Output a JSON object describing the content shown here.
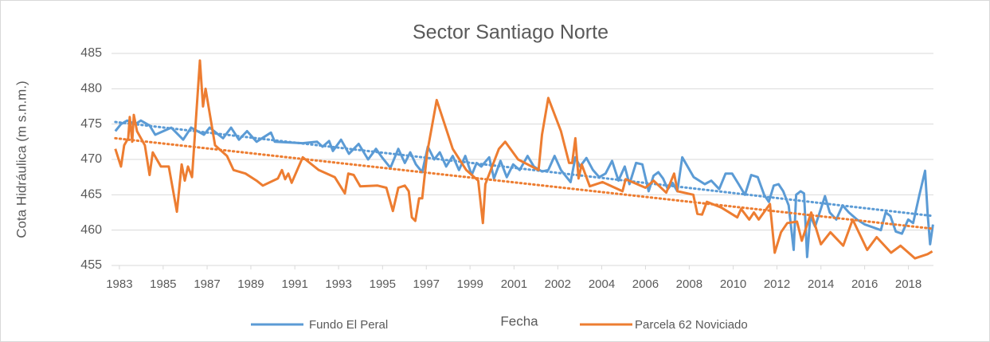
{
  "chart_data": {
    "type": "line",
    "title": "Sector Santiago Norte",
    "x_label": "Fecha",
    "y_label": "Cota Hidráulica  (m s.n.m.)",
    "xlim": [
      1982.65,
      2019.1
    ],
    "ylim": [
      455,
      485
    ],
    "yticks": [
      455,
      460,
      465,
      470,
      475,
      480,
      485
    ],
    "xticks": [
      {
        "value": 1983,
        "label": "1983"
      },
      {
        "value": 1984.94,
        "label": "1985"
      },
      {
        "value": 1986.89,
        "label": "1987"
      },
      {
        "value": 1988.83,
        "label": "1989"
      },
      {
        "value": 1990.78,
        "label": "1991"
      },
      {
        "value": 1992.72,
        "label": "1993"
      },
      {
        "value": 1994.67,
        "label": "1995"
      },
      {
        "value": 1996.61,
        "label": "1997"
      },
      {
        "value": 1998.55,
        "label": "1999"
      },
      {
        "value": 2000.5,
        "label": "2001"
      },
      {
        "value": 2002.44,
        "label": "2002"
      },
      {
        "value": 2004.39,
        "label": "2004"
      },
      {
        "value": 2006.33,
        "label": "2006"
      },
      {
        "value": 2008.27,
        "label": "2008"
      },
      {
        "value": 2010.22,
        "label": "2010"
      },
      {
        "value": 2012.16,
        "label": "2012"
      },
      {
        "value": 2014.11,
        "label": "2014"
      },
      {
        "value": 2016.05,
        "label": "2016"
      },
      {
        "value": 2017.99,
        "label": "2018"
      }
    ],
    "grid": true,
    "legend": "bottom",
    "series": [
      {
        "name": "Fundo El Peral",
        "color": "#5b9bd5",
        "x": [
          1982.82,
          1983.07,
          1983.35,
          1983.71,
          1983.95,
          1984.34,
          1984.59,
          1985.3,
          1985.83,
          1986.18,
          1986.75,
          1987.0,
          1987.6,
          1987.95,
          1988.3,
          1988.66,
          1989.08,
          1989.72,
          1989.89,
          1991.13,
          1991.77,
          1992.01,
          1992.3,
          1992.47,
          1992.83,
          1993.18,
          1993.61,
          1994.03,
          1994.38,
          1994.67,
          1995.02,
          1995.37,
          1995.66,
          1995.9,
          1996.15,
          1996.43,
          1996.68,
          1996.96,
          1997.21,
          1997.49,
          1997.78,
          1998.06,
          1998.34,
          1998.62,
          1998.84,
          1999.05,
          1999.4,
          1999.61,
          1999.9,
          2000.18,
          2000.46,
          2000.75,
          2001.1,
          2001.38,
          2001.74,
          2002.02,
          2002.3,
          2002.58,
          2003.01,
          2003.22,
          2003.43,
          2003.71,
          2004.0,
          2004.28,
          2004.56,
          2004.85,
          2005.13,
          2005.41,
          2005.62,
          2005.91,
          2006.19,
          2006.47,
          2006.69,
          2006.9,
          2007.11,
          2007.32,
          2007.53,
          2007.74,
          2007.96,
          2008.47,
          2008.96,
          2009.25,
          2009.6,
          2009.88,
          2010.17,
          2010.46,
          2010.74,
          2011.02,
          2011.31,
          2011.59,
          2011.8,
          2012.02,
          2012.23,
          2012.44,
          2012.68,
          2012.9,
          2013.01,
          2013.21,
          2013.36,
          2013.5,
          2013.64,
          2013.85,
          2014.29,
          2014.5,
          2014.79,
          2015.07,
          2015.35,
          2015.71,
          2016.06,
          2016.77,
          2016.98,
          2017.19,
          2017.43,
          2017.7,
          2017.98,
          2018.2,
          2018.48,
          2018.73,
          2018.85,
          2018.95,
          2019.08
        ],
        "values": [
          474,
          475,
          475.5,
          475,
          475.5,
          474.8,
          473.5,
          474.5,
          472.8,
          474.5,
          473.5,
          474.5,
          473,
          474.5,
          472.8,
          474,
          472.5,
          473.8,
          472.5,
          472.3,
          472.5,
          471.8,
          472.6,
          471.2,
          472.8,
          470.8,
          472.2,
          470,
          471.5,
          470.2,
          468.8,
          471.5,
          469.5,
          471,
          469.3,
          468.2,
          471.8,
          470,
          471,
          469,
          470.5,
          468.5,
          470.5,
          467.8,
          469.5,
          469,
          470.3,
          467.3,
          469.8,
          467.5,
          469.3,
          468.5,
          470.5,
          469,
          468.3,
          468.5,
          470.5,
          468.5,
          466.8,
          470.3,
          469,
          470.2,
          468.5,
          467.5,
          468,
          469.8,
          467,
          469,
          466.5,
          469.5,
          469.3,
          465.5,
          467.7,
          468.2,
          467.3,
          465.8,
          466.7,
          465.5,
          470.3,
          467.5,
          466.5,
          467,
          465.8,
          468,
          468,
          466.5,
          465,
          467.8,
          467.5,
          465,
          464,
          466.3,
          466.5,
          465.5,
          463.5,
          457.2,
          465,
          465.5,
          465.2,
          456.2,
          462,
          460.5,
          464.8,
          462.5,
          461.5,
          463.5,
          462.5,
          461.5,
          460.8,
          460,
          462.5,
          462,
          459.8,
          459.5,
          461.5,
          461,
          465,
          468.4,
          462,
          458,
          460.8
        ],
        "trendline": {
          "x": [
            1982.82,
            2019.08
          ],
          "y": [
            475.3,
            462.0
          ]
        }
      },
      {
        "name": "Parcela 62 Noviciado",
        "color": "#ed7d31",
        "x": [
          1982.82,
          1983.07,
          1983.21,
          1983.39,
          1983.46,
          1983.57,
          1983.64,
          1983.78,
          1984.13,
          1984.34,
          1984.48,
          1984.84,
          1985.19,
          1985.55,
          1985.76,
          1985.9,
          1986.04,
          1986.22,
          1986.57,
          1986.71,
          1986.82,
          1987.24,
          1987.77,
          1988.06,
          1988.59,
          1989.08,
          1989.36,
          1990.03,
          1990.21,
          1990.35,
          1990.49,
          1990.64,
          1991.13,
          1991.84,
          1992.55,
          1993.0,
          1993.15,
          1993.39,
          1993.68,
          1994.45,
          1994.84,
          1995.13,
          1995.37,
          1995.66,
          1995.83,
          1995.97,
          1996.12,
          1996.29,
          1996.43,
          1996.65,
          1997.07,
          1997.78,
          1998.38,
          1998.91,
          1999.12,
          1999.23,
          1999.83,
          2000.11,
          2000.68,
          2001.59,
          2001.74,
          2002.02,
          2002.58,
          2002.94,
          2003.08,
          2003.22,
          2003.36,
          2003.5,
          2003.86,
          2004.42,
          2005.31,
          2005.45,
          2006.33,
          2006.69,
          2007.25,
          2007.6,
          2007.75,
          2008.45,
          2008.63,
          2008.84,
          2009.05,
          2009.69,
          2010.4,
          2010.57,
          2010.93,
          2011.14,
          2011.35,
          2011.85,
          2012.06,
          2012.34,
          2012.62,
          2013.05,
          2013.26,
          2013.68,
          2014.11,
          2014.53,
          2015.1,
          2015.52,
          2016.16,
          2016.58,
          2017.22,
          2017.64,
          2018.28,
          2018.84,
          2019.05
        ],
        "values": [
          471.5,
          469,
          472,
          473,
          476,
          472.5,
          476.3,
          474,
          472,
          467.8,
          471,
          469,
          469,
          462.6,
          469.3,
          467,
          469,
          467.5,
          484,
          477.5,
          480,
          472,
          470.5,
          468.5,
          468,
          467,
          466.3,
          467.3,
          468.5,
          467.2,
          468,
          466.7,
          470.3,
          468.5,
          467.5,
          465.2,
          468,
          467.8,
          466.2,
          466.3,
          466,
          462.7,
          466,
          466.3,
          465.5,
          461.8,
          461.3,
          464.5,
          464.5,
          471,
          478.4,
          471.5,
          468.5,
          467,
          461,
          466.5,
          471.5,
          472.5,
          470,
          468.5,
          473.5,
          478.7,
          474,
          469.5,
          469.5,
          473,
          467.3,
          469.3,
          466.2,
          466.8,
          465.5,
          467.2,
          466,
          467,
          465.3,
          468,
          465.5,
          465,
          462.3,
          462.2,
          464,
          463.2,
          461.8,
          463,
          461.5,
          462.5,
          461.5,
          463.7,
          456.8,
          459.7,
          461,
          461.2,
          458.5,
          462.5,
          458,
          459.7,
          457.8,
          461.5,
          457.2,
          459,
          456.8,
          457.8,
          456,
          456.6,
          457
        ],
        "trendline": {
          "x": [
            1982.82,
            2019.08
          ],
          "y": [
            473.0,
            460.2
          ]
        }
      }
    ]
  }
}
